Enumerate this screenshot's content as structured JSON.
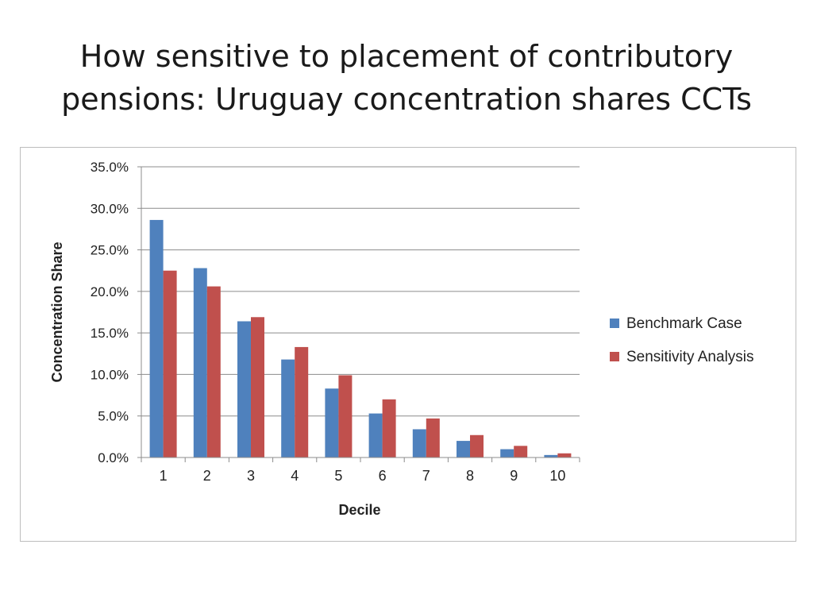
{
  "slide": {
    "title_line1": "How sensitive to placement of contributory",
    "title_line2": "pensions: Uruguay concentration shares CCTs"
  },
  "chart_data": {
    "type": "bar",
    "xlabel": "Decile",
    "ylabel": "Concentration Share",
    "categories": [
      "1",
      "2",
      "3",
      "4",
      "5",
      "6",
      "7",
      "8",
      "9",
      "10"
    ],
    "series": [
      {
        "name": "Benchmark Case",
        "color": "#4f81bd",
        "values": [
          28.6,
          22.8,
          16.4,
          11.8,
          8.3,
          5.3,
          3.4,
          2.0,
          1.0,
          0.3
        ]
      },
      {
        "name": "Sensitivity Analysis",
        "color": "#c0504d",
        "values": [
          22.5,
          20.6,
          16.9,
          13.3,
          9.9,
          7.0,
          4.7,
          2.7,
          1.4,
          0.5
        ]
      }
    ],
    "ylim": [
      0,
      35
    ],
    "yticks": [
      "0.0%",
      "5.0%",
      "10.0%",
      "15.0%",
      "20.0%",
      "25.0%",
      "30.0%",
      "35.0%"
    ],
    "grid": true,
    "legend_position": "right"
  }
}
